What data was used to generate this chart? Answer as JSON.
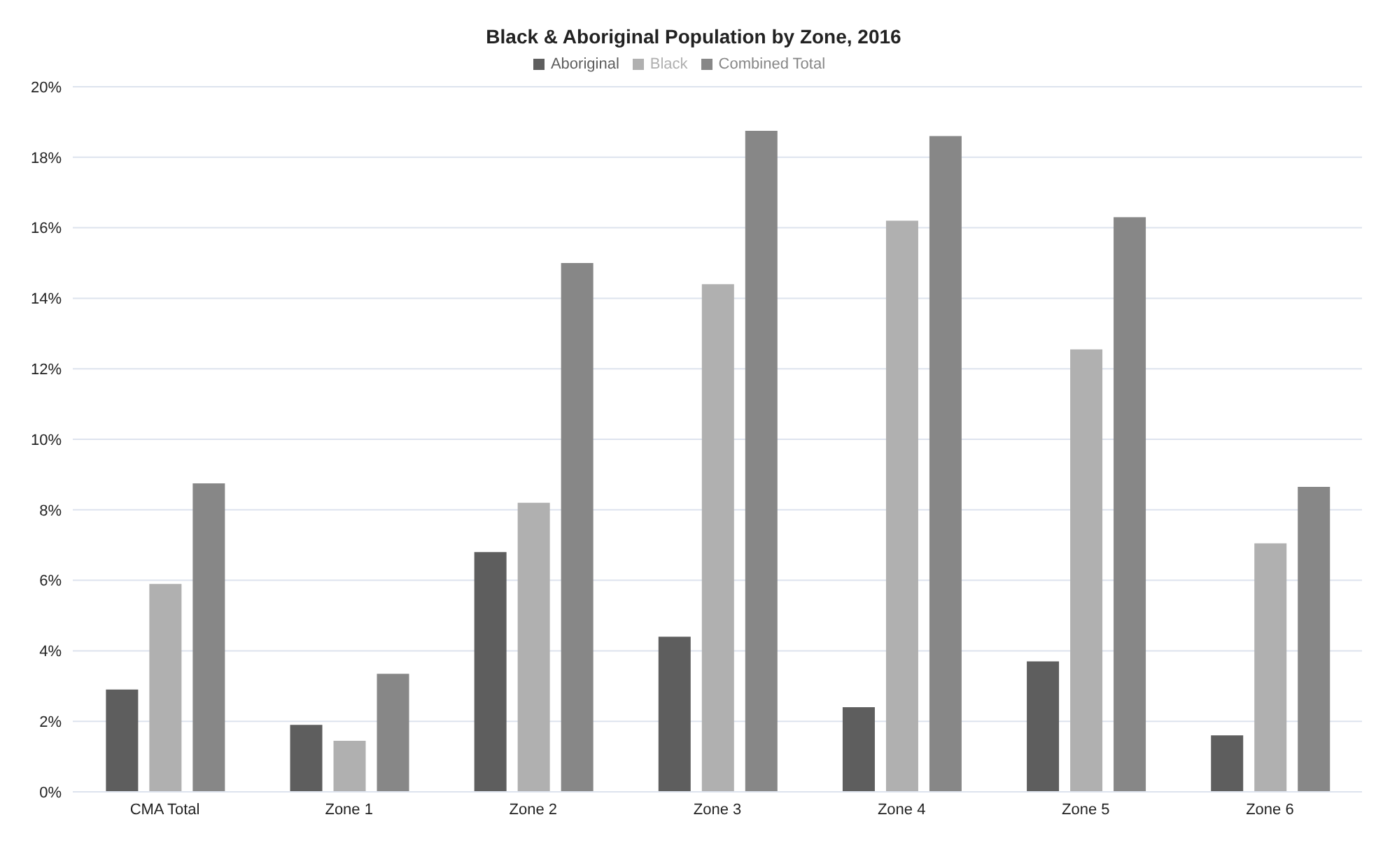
{
  "chart_data": {
    "type": "bar",
    "title": "Black & Aboriginal Population by Zone, 2016",
    "categories": [
      "CMA Total",
      "Zone 1",
      "Zone 2",
      "Zone 3",
      "Zone 4",
      "Zone 5",
      "Zone 6"
    ],
    "series": [
      {
        "name": "Aboriginal",
        "color": "#5e5e5e",
        "values": [
          2.9,
          1.9,
          6.8,
          4.4,
          2.4,
          3.7,
          1.6
        ]
      },
      {
        "name": "Black",
        "color": "#b0b0b0",
        "values": [
          5.9,
          1.45,
          8.2,
          14.4,
          16.2,
          12.55,
          7.05
        ]
      },
      {
        "name": "Combined Total",
        "color": "#878787",
        "values": [
          8.75,
          3.35,
          15.0,
          18.75,
          18.6,
          16.3,
          8.65
        ]
      }
    ],
    "ylim": [
      0,
      20
    ],
    "yticks": [
      {
        "value": 0,
        "label": "0%"
      },
      {
        "value": 2,
        "label": "2%"
      },
      {
        "value": 4,
        "label": "4%"
      },
      {
        "value": 6,
        "label": "6%"
      },
      {
        "value": 8,
        "label": "8%"
      },
      {
        "value": 10,
        "label": "10%"
      },
      {
        "value": 12,
        "label": "12%"
      },
      {
        "value": 14,
        "label": "14%"
      },
      {
        "value": 16,
        "label": "16%"
      },
      {
        "value": 18,
        "label": "18%"
      },
      {
        "value": 20,
        "label": "20%"
      }
    ],
    "grid": "y",
    "legend": "top"
  }
}
